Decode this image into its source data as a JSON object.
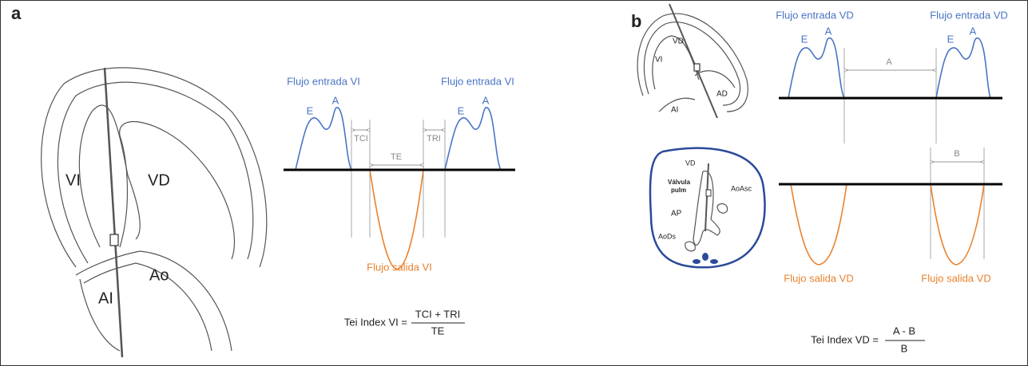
{
  "panel_a": {
    "letter": "a",
    "heart": {
      "left_ventricle": "VI",
      "right_ventricle": "VD",
      "left_atrium": "AI",
      "aorta": "Ao"
    },
    "inflow_left": {
      "title": "Flujo entrada VI",
      "e": "E",
      "a": "A"
    },
    "inflow_right": {
      "title": "Flujo entrada VI",
      "e": "E",
      "a": "A"
    },
    "intervals": {
      "tci": "TCI",
      "te": "TE",
      "tri": "TRI"
    },
    "outflow": {
      "title": "Flujo salida VI"
    },
    "formula": {
      "lhs": "Tei Index VI =",
      "numerator": "TCI + TRI",
      "denominator": "TE"
    }
  },
  "panel_b": {
    "letter": "b",
    "heart": {
      "left_ventricle": "VI",
      "right_ventricle": "VD",
      "left_atrium": "AI",
      "right_atrium": "AD"
    },
    "cross_section": {
      "right_ventricle": "VD",
      "valve_line1": "Válvula",
      "valve_line2": "pulm",
      "pulmonary_artery": "AP",
      "ascending_aorta": "AoAsc",
      "descending_aorta": "AoDs"
    },
    "inflow_left": {
      "title": "Flujo entrada VD",
      "e": "E",
      "a": "A"
    },
    "inflow_right": {
      "title": "Flujo entrada VD",
      "e": "E",
      "a": "A"
    },
    "interval_a": "A",
    "interval_b": "B",
    "outflow_left": {
      "title": "Flujo salida VD"
    },
    "outflow_right": {
      "title": "Flujo salida VD"
    },
    "formula": {
      "lhs": "Tei Index VD =",
      "numerator": "A - B",
      "denominator": "B"
    }
  }
}
